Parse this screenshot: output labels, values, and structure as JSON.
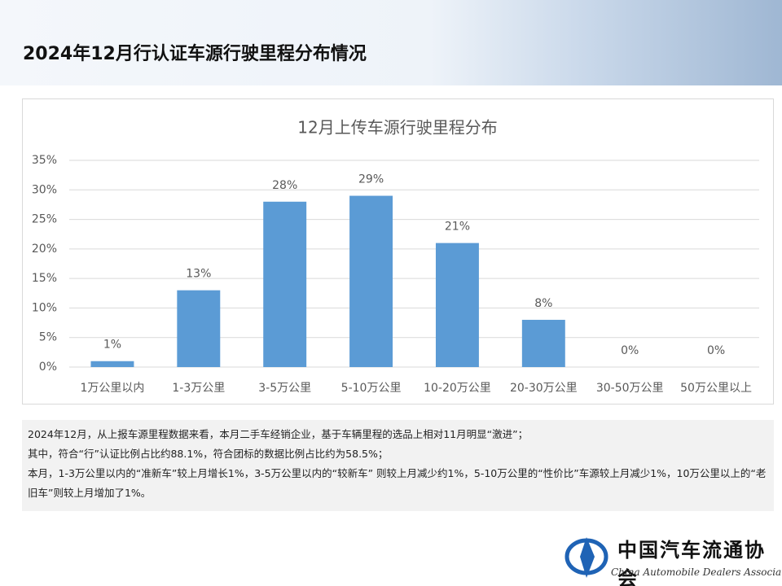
{
  "header": {
    "title": "2024年12月行认证车源行驶里程分布情况"
  },
  "chart_data": {
    "type": "bar",
    "title": "12月上传车源行驶里程分布",
    "categories": [
      "1万公里以内",
      "1-3万公里",
      "3-5万公里",
      "5-10万公里",
      "10-20万公里",
      "20-30万公里",
      "30-50万公里",
      "50万公里以上"
    ],
    "values": [
      1,
      13,
      28,
      29,
      21,
      8,
      0,
      0
    ],
    "value_labels": [
      "1%",
      "13%",
      "28%",
      "29%",
      "21%",
      "8%",
      "0%",
      "0%"
    ],
    "color": "#5b9bd5",
    "ylim": [
      0,
      35
    ],
    "yticks": [
      {
        "value": 0,
        "label": "0%"
      },
      {
        "value": 5,
        "label": "5%"
      },
      {
        "value": 10,
        "label": "10%"
      },
      {
        "value": 15,
        "label": "15%"
      },
      {
        "value": 20,
        "label": "20%"
      },
      {
        "value": 25,
        "label": "25%"
      },
      {
        "value": 30,
        "label": "30%"
      },
      {
        "value": 35,
        "label": "35%"
      }
    ],
    "grid": true
  },
  "note": {
    "paragraphs": [
      "2024年12月，从上报车源里程数据来看，本月二手车经销企业，基于车辆里程的选品上相对11月明显“激进”；",
      "其中，符合“行”认证比例占比约88.1%，符合团标的数据比例占比约为58.5%；",
      "本月，1-3万公里以内的“准新车”较上月增长1%，3-5万公里以内的“较新车” 则较上月减少约1%，5-10万公里的“性价比”车源较上月减少1%，10万公里以上的“老旧车”则较上月增加了1%。"
    ]
  },
  "footer": {
    "logo_cn": "中国汽车流通协会",
    "logo_en": "China Automobile Dealers Association"
  }
}
